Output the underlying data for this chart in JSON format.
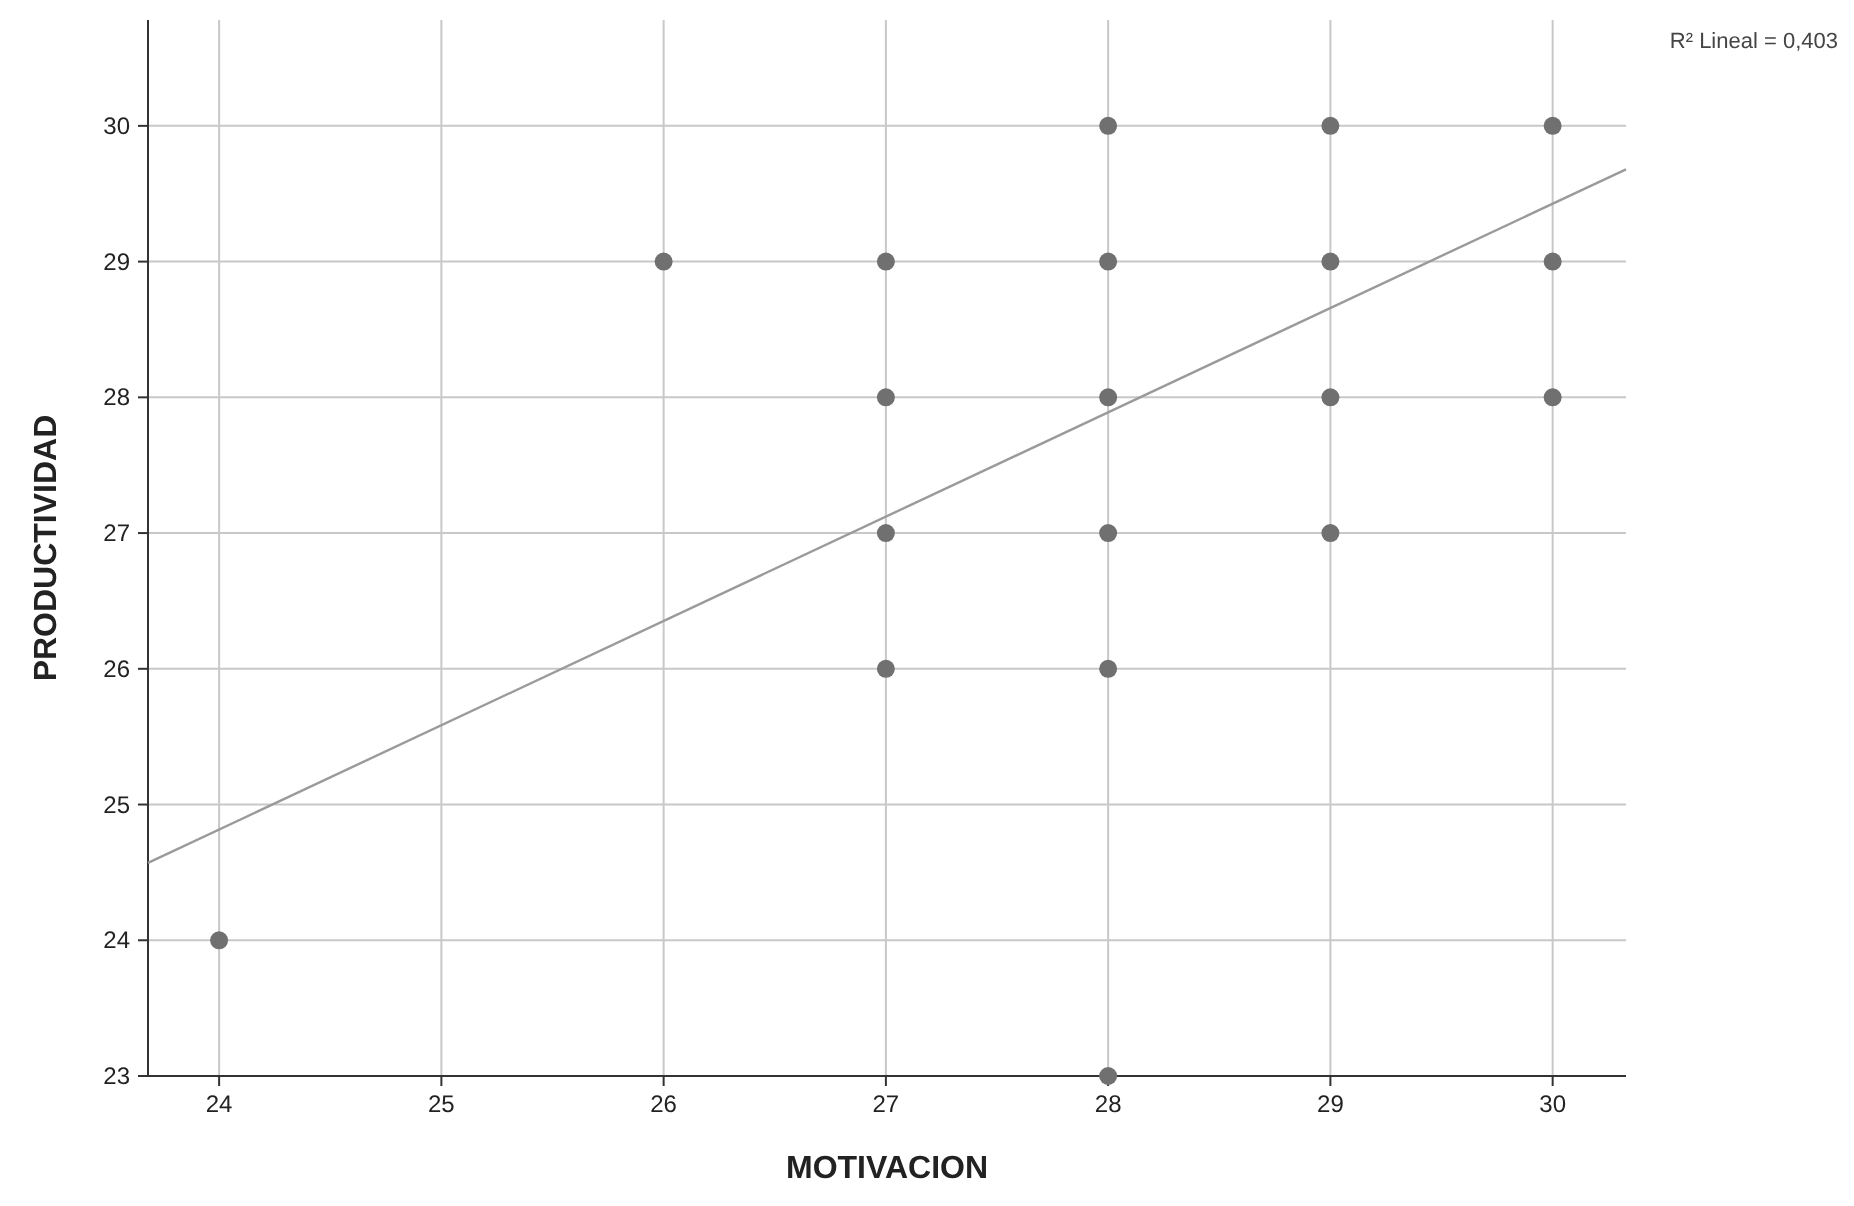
{
  "chart_data": {
    "type": "scatter",
    "xlabel": "MOTIVACION",
    "ylabel": "PRODUCTIVIDAD",
    "annotations": [
      "R² Lineal = 0,403"
    ],
    "xlim": [
      23.68,
      30.33
    ],
    "ylim": [
      23,
      30.78
    ],
    "xticks": [
      24,
      25,
      26,
      27,
      28,
      29,
      30
    ],
    "yticks": [
      23,
      24,
      25,
      26,
      27,
      28,
      29,
      30
    ],
    "grid": true,
    "marker": "circle",
    "series": [
      {
        "color": "#707070",
        "x": [
          24,
          26,
          27,
          27,
          27,
          27,
          28,
          28,
          28,
          28,
          28,
          28,
          29,
          29,
          29,
          29,
          30,
          30,
          30
        ],
        "values": [
          24,
          29,
          29,
          28,
          27,
          26,
          30,
          29,
          28,
          27,
          26,
          23,
          30,
          29,
          28,
          27,
          30,
          29,
          28
        ]
      },
      {
        "type": "line",
        "color": "#9a9a9a",
        "marker": "none",
        "x": [
          23.68,
          30.33
        ],
        "values": [
          24.57,
          29.68
        ]
      }
    ]
  }
}
